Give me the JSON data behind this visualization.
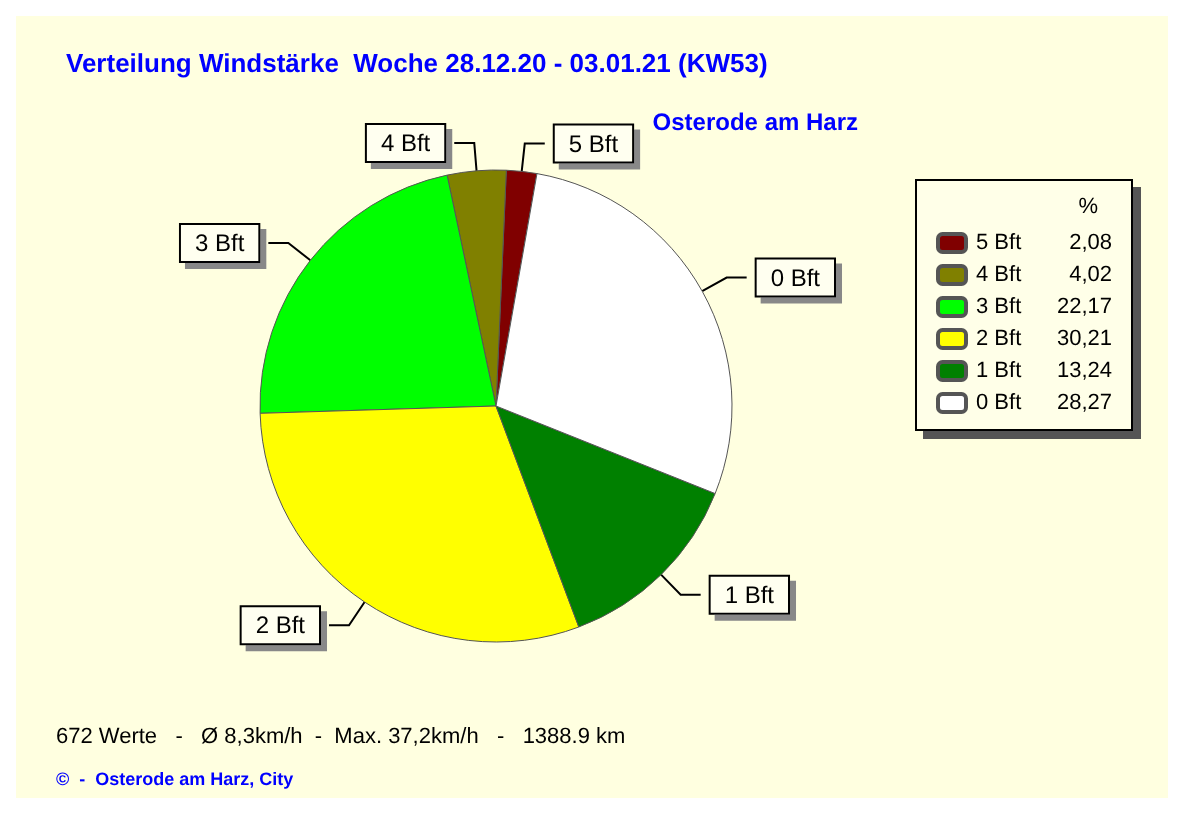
{
  "chart_data": {
    "type": "pie",
    "title": "Verteilung Windstärke  Woche 28.12.20 - 03.01.21 (KW53)",
    "subtitle": "Osterode am Harz",
    "categories": [
      "5 Bft",
      "4 Bft",
      "3 Bft",
      "2 Bft",
      "1 Bft",
      "0 Bft"
    ],
    "values": [
      2.08,
      4.02,
      22.17,
      30.21,
      13.24,
      28.27
    ],
    "value_labels": [
      "2,08",
      "4,02",
      "22,17",
      "30,21",
      "13,24",
      "28,27"
    ],
    "colors": [
      "#800000",
      "#808000",
      "#00ff00",
      "#ffff00",
      "#008000",
      "#ffffff"
    ],
    "legend": "right",
    "legend_title": "%",
    "annotations": [
      "672 Werte   -   Ø 8,3km/h  -  Max. 37,2km/h   -   1388.9 km",
      "©  -  Osterode am Harz, City"
    ]
  }
}
